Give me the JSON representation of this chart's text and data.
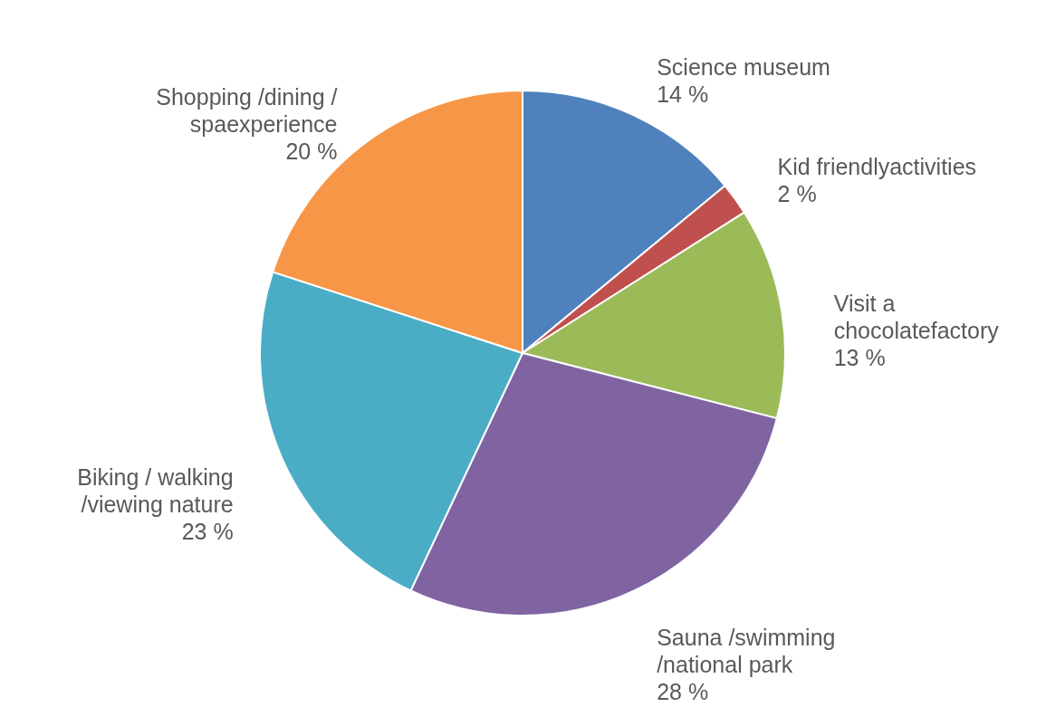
{
  "chart_data": {
    "type": "pie",
    "categories": [
      "Science museum",
      "Kid friendlyactivities",
      "Visit a chocolatefactory",
      "Sauna /swimming /national park",
      "Biking / walking /viewing nature",
      "Shopping /dining / spaexperience"
    ],
    "values": [
      14,
      2,
      13,
      28,
      23,
      20
    ],
    "value_labels": [
      "14 %",
      "2 %",
      "13 %",
      "28 %",
      "23 %",
      "20 %"
    ],
    "colors": [
      "#4f81bd",
      "#c0504d",
      "#9bbb59",
      "#8064a2",
      "#4bacc6",
      "#f79646"
    ]
  }
}
